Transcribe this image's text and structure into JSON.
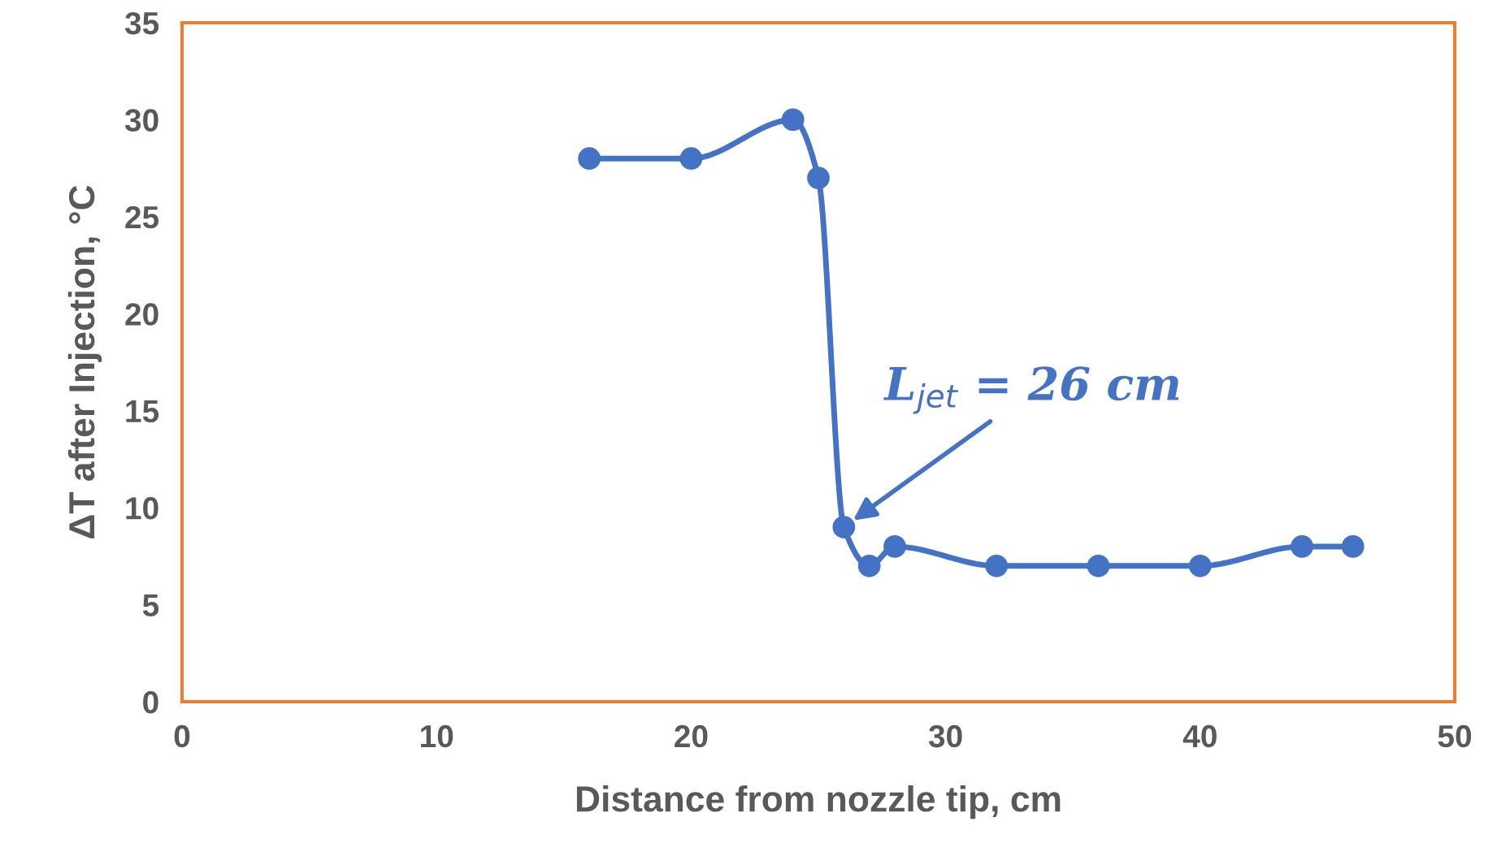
{
  "chart_data": {
    "type": "line",
    "xlabel": "Distance from nozzle tip, cm",
    "ylabel": "ΔT after Injection, °C",
    "x": [
      16,
      20,
      24,
      25,
      26,
      27,
      28,
      32,
      36,
      40,
      44,
      46
    ],
    "series": [
      {
        "color": "#4472c4",
        "values": [
          28,
          28,
          30,
          27,
          9,
          7,
          8,
          7,
          7,
          7,
          8,
          8
        ]
      }
    ],
    "xlim": [
      0,
      50
    ],
    "xticks": [
      0,
      10,
      20,
      30,
      40,
      50
    ],
    "ylim": [
      0,
      35
    ],
    "yticks": [
      0,
      5,
      10,
      15,
      20,
      25,
      30,
      35
    ],
    "grid": false,
    "legend": false,
    "marker": "circle",
    "line_style": "solid",
    "annotations": [
      {
        "text": "L$_{jet}$ = 26 cm",
        "x": 26,
        "y": 9
      }
    ]
  }
}
